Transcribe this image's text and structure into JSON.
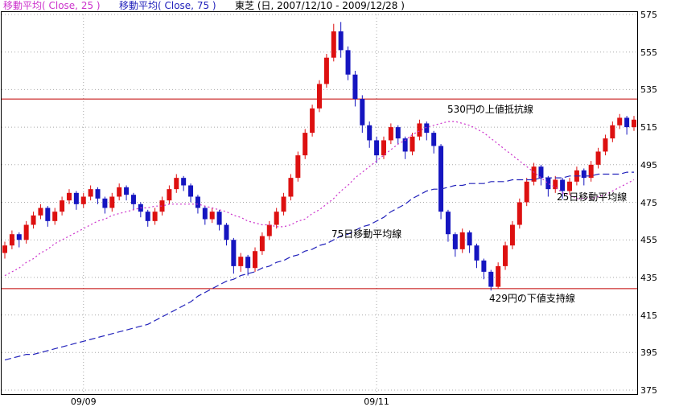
{
  "header": {
    "ma25_label": "移動平均( Close, 25 )",
    "ma75_label": "移動平均( Close, 75 )",
    "title": "東芝 (日, 2007/12/10 - 2009/12/28 )"
  },
  "chart_data": {
    "type": "candlestick",
    "title": "東芝 (日, 2007/12/10 - 2009/12/28 )",
    "legend_position": "top",
    "grid": true,
    "ylim": [
      372,
      577
    ],
    "y_ticks": [
      575,
      555,
      535,
      515,
      495,
      475,
      455,
      435,
      415,
      395,
      375
    ],
    "x_ticks": [
      {
        "index": 11,
        "label": "09/09"
      },
      {
        "index": 52,
        "label": "09/11"
      }
    ],
    "colors": {
      "up": "#dd1010",
      "down": "#1515c0",
      "level": "#c00000",
      "grid": "#a8a8a8",
      "frame": "#000000"
    },
    "levels": [
      {
        "value": 530,
        "label": "530円の上値抵抗線"
      },
      {
        "value": 429,
        "label": "429円の下値支持線"
      }
    ],
    "annotations": [
      {
        "text": "530円の上値抵抗線",
        "x": 556,
        "y": 127
      },
      {
        "text": "25日移動平均線",
        "x": 692,
        "y": 236
      },
      {
        "text": "75日移動平均線",
        "x": 412,
        "y": 282
      },
      {
        "text": "429円の下値支持線",
        "x": 608,
        "y": 362
      }
    ],
    "candles": [
      [
        448,
        454,
        445,
        452
      ],
      [
        452,
        460,
        450,
        458
      ],
      [
        458,
        459,
        451,
        455
      ],
      [
        455,
        465,
        453,
        463
      ],
      [
        463,
        470,
        461,
        468
      ],
      [
        468,
        474,
        466,
        472
      ],
      [
        472,
        473,
        462,
        465
      ],
      [
        465,
        472,
        463,
        470
      ],
      [
        470,
        478,
        468,
        476
      ],
      [
        476,
        482,
        474,
        480
      ],
      [
        480,
        481,
        471,
        474
      ],
      [
        474,
        480,
        472,
        478
      ],
      [
        478,
        484,
        476,
        482
      ],
      [
        482,
        483,
        474,
        477
      ],
      [
        477,
        478,
        469,
        472
      ],
      [
        472,
        480,
        470,
        478
      ],
      [
        478,
        485,
        476,
        483
      ],
      [
        483,
        484,
        476,
        479
      ],
      [
        479,
        480,
        471,
        474
      ],
      [
        474,
        475,
        467,
        470
      ],
      [
        470,
        471,
        462,
        465
      ],
      [
        465,
        472,
        463,
        470
      ],
      [
        470,
        478,
        468,
        476
      ],
      [
        476,
        484,
        474,
        482
      ],
      [
        482,
        490,
        480,
        488
      ],
      [
        488,
        489,
        481,
        484
      ],
      [
        484,
        485,
        475,
        478
      ],
      [
        478,
        479,
        469,
        472
      ],
      [
        472,
        473,
        463,
        466
      ],
      [
        466,
        472,
        464,
        470
      ],
      [
        470,
        471,
        460,
        463
      ],
      [
        463,
        464,
        452,
        455
      ],
      [
        455,
        456,
        437,
        441
      ],
      [
        441,
        448,
        438,
        446
      ],
      [
        446,
        447,
        436,
        440
      ],
      [
        440,
        451,
        438,
        449
      ],
      [
        449,
        459,
        447,
        457
      ],
      [
        457,
        465,
        455,
        463
      ],
      [
        463,
        472,
        461,
        470
      ],
      [
        470,
        480,
        468,
        478
      ],
      [
        478,
        490,
        476,
        488
      ],
      [
        488,
        502,
        486,
        500
      ],
      [
        500,
        514,
        498,
        512
      ],
      [
        512,
        527,
        510,
        525
      ],
      [
        525,
        540,
        523,
        538
      ],
      [
        538,
        554,
        536,
        552
      ],
      [
        552,
        570,
        550,
        566
      ],
      [
        566,
        571,
        552,
        556
      ],
      [
        556,
        558,
        540,
        543
      ],
      [
        543,
        545,
        526,
        530
      ],
      [
        530,
        532,
        512,
        516
      ],
      [
        516,
        518,
        504,
        508
      ],
      [
        508,
        510,
        496,
        500
      ],
      [
        500,
        510,
        498,
        508
      ],
      [
        508,
        517,
        506,
        515
      ],
      [
        515,
        516,
        506,
        509
      ],
      [
        509,
        510,
        498,
        502
      ],
      [
        502,
        512,
        500,
        510
      ],
      [
        510,
        519,
        508,
        517
      ],
      [
        517,
        518,
        508,
        512
      ],
      [
        512,
        513,
        501,
        505
      ],
      [
        505,
        506,
        466,
        470
      ],
      [
        470,
        471,
        454,
        458
      ],
      [
        458,
        459,
        446,
        450
      ],
      [
        450,
        461,
        448,
        459
      ],
      [
        459,
        460,
        448,
        452
      ],
      [
        452,
        453,
        440,
        444
      ],
      [
        444,
        445,
        434,
        438
      ],
      [
        438,
        439,
        428,
        430
      ],
      [
        430,
        443,
        429,
        441
      ],
      [
        441,
        454,
        439,
        452
      ],
      [
        452,
        465,
        450,
        463
      ],
      [
        463,
        477,
        461,
        475
      ],
      [
        475,
        488,
        473,
        486
      ],
      [
        486,
        496,
        484,
        494
      ],
      [
        494,
        495,
        484,
        488
      ],
      [
        488,
        489,
        478,
        482
      ],
      [
        482,
        489,
        480,
        487
      ],
      [
        487,
        488,
        477,
        481
      ],
      [
        481,
        488,
        479,
        486
      ],
      [
        486,
        494,
        484,
        492
      ],
      [
        492,
        493,
        484,
        488
      ],
      [
        488,
        497,
        486,
        495
      ],
      [
        495,
        504,
        493,
        502
      ],
      [
        502,
        511,
        500,
        509
      ],
      [
        509,
        518,
        507,
        516
      ],
      [
        516,
        522,
        514,
        520
      ],
      [
        520,
        521,
        511,
        515
      ],
      [
        515,
        521,
        513,
        519
      ]
    ],
    "series": [
      {
        "name": "移動平均( Close, 25 )",
        "color": "#cc33cc",
        "dash": "2 3",
        "values": [
          436,
          438,
          440,
          443,
          445,
          448,
          450,
          453,
          455,
          457,
          459,
          461,
          463,
          465,
          466,
          468,
          469,
          470,
          471,
          472,
          472,
          473,
          473,
          474,
          474,
          474,
          474,
          474,
          473,
          472,
          471,
          470,
          468,
          467,
          465,
          464,
          463,
          463,
          462,
          462,
          463,
          465,
          466,
          469,
          471,
          474,
          477,
          481,
          484,
          488,
          491,
          494,
          497,
          500,
          503,
          506,
          508,
          511,
          513,
          515,
          516,
          517,
          518,
          518,
          517,
          516,
          514,
          512,
          509,
          506,
          503,
          500,
          497,
          494,
          491,
          488,
          485,
          483,
          480,
          479,
          477,
          477,
          477,
          478,
          479,
          481,
          483,
          485,
          487
        ]
      },
      {
        "name": "移動平均( Close, 75 )",
        "color": "#2222bb",
        "dash": "8 4",
        "values": [
          391,
          392,
          393,
          394,
          394,
          395,
          396,
          397,
          398,
          399,
          400,
          401,
          402,
          403,
          404,
          405,
          406,
          407,
          408,
          409,
          410,
          412,
          414,
          416,
          418,
          420,
          422,
          425,
          427,
          429,
          431,
          433,
          434,
          436,
          437,
          438,
          440,
          441,
          443,
          444,
          446,
          447,
          449,
          450,
          452,
          453,
          455,
          457,
          458,
          460,
          462,
          463,
          465,
          467,
          470,
          472,
          474,
          477,
          479,
          481,
          482,
          482,
          483,
          484,
          484,
          485,
          485,
          485,
          486,
          486,
          486,
          487,
          487,
          487,
          487,
          488,
          488,
          488,
          488,
          489,
          489,
          489,
          489,
          490,
          490,
          490,
          490,
          491,
          491
        ]
      }
    ]
  }
}
